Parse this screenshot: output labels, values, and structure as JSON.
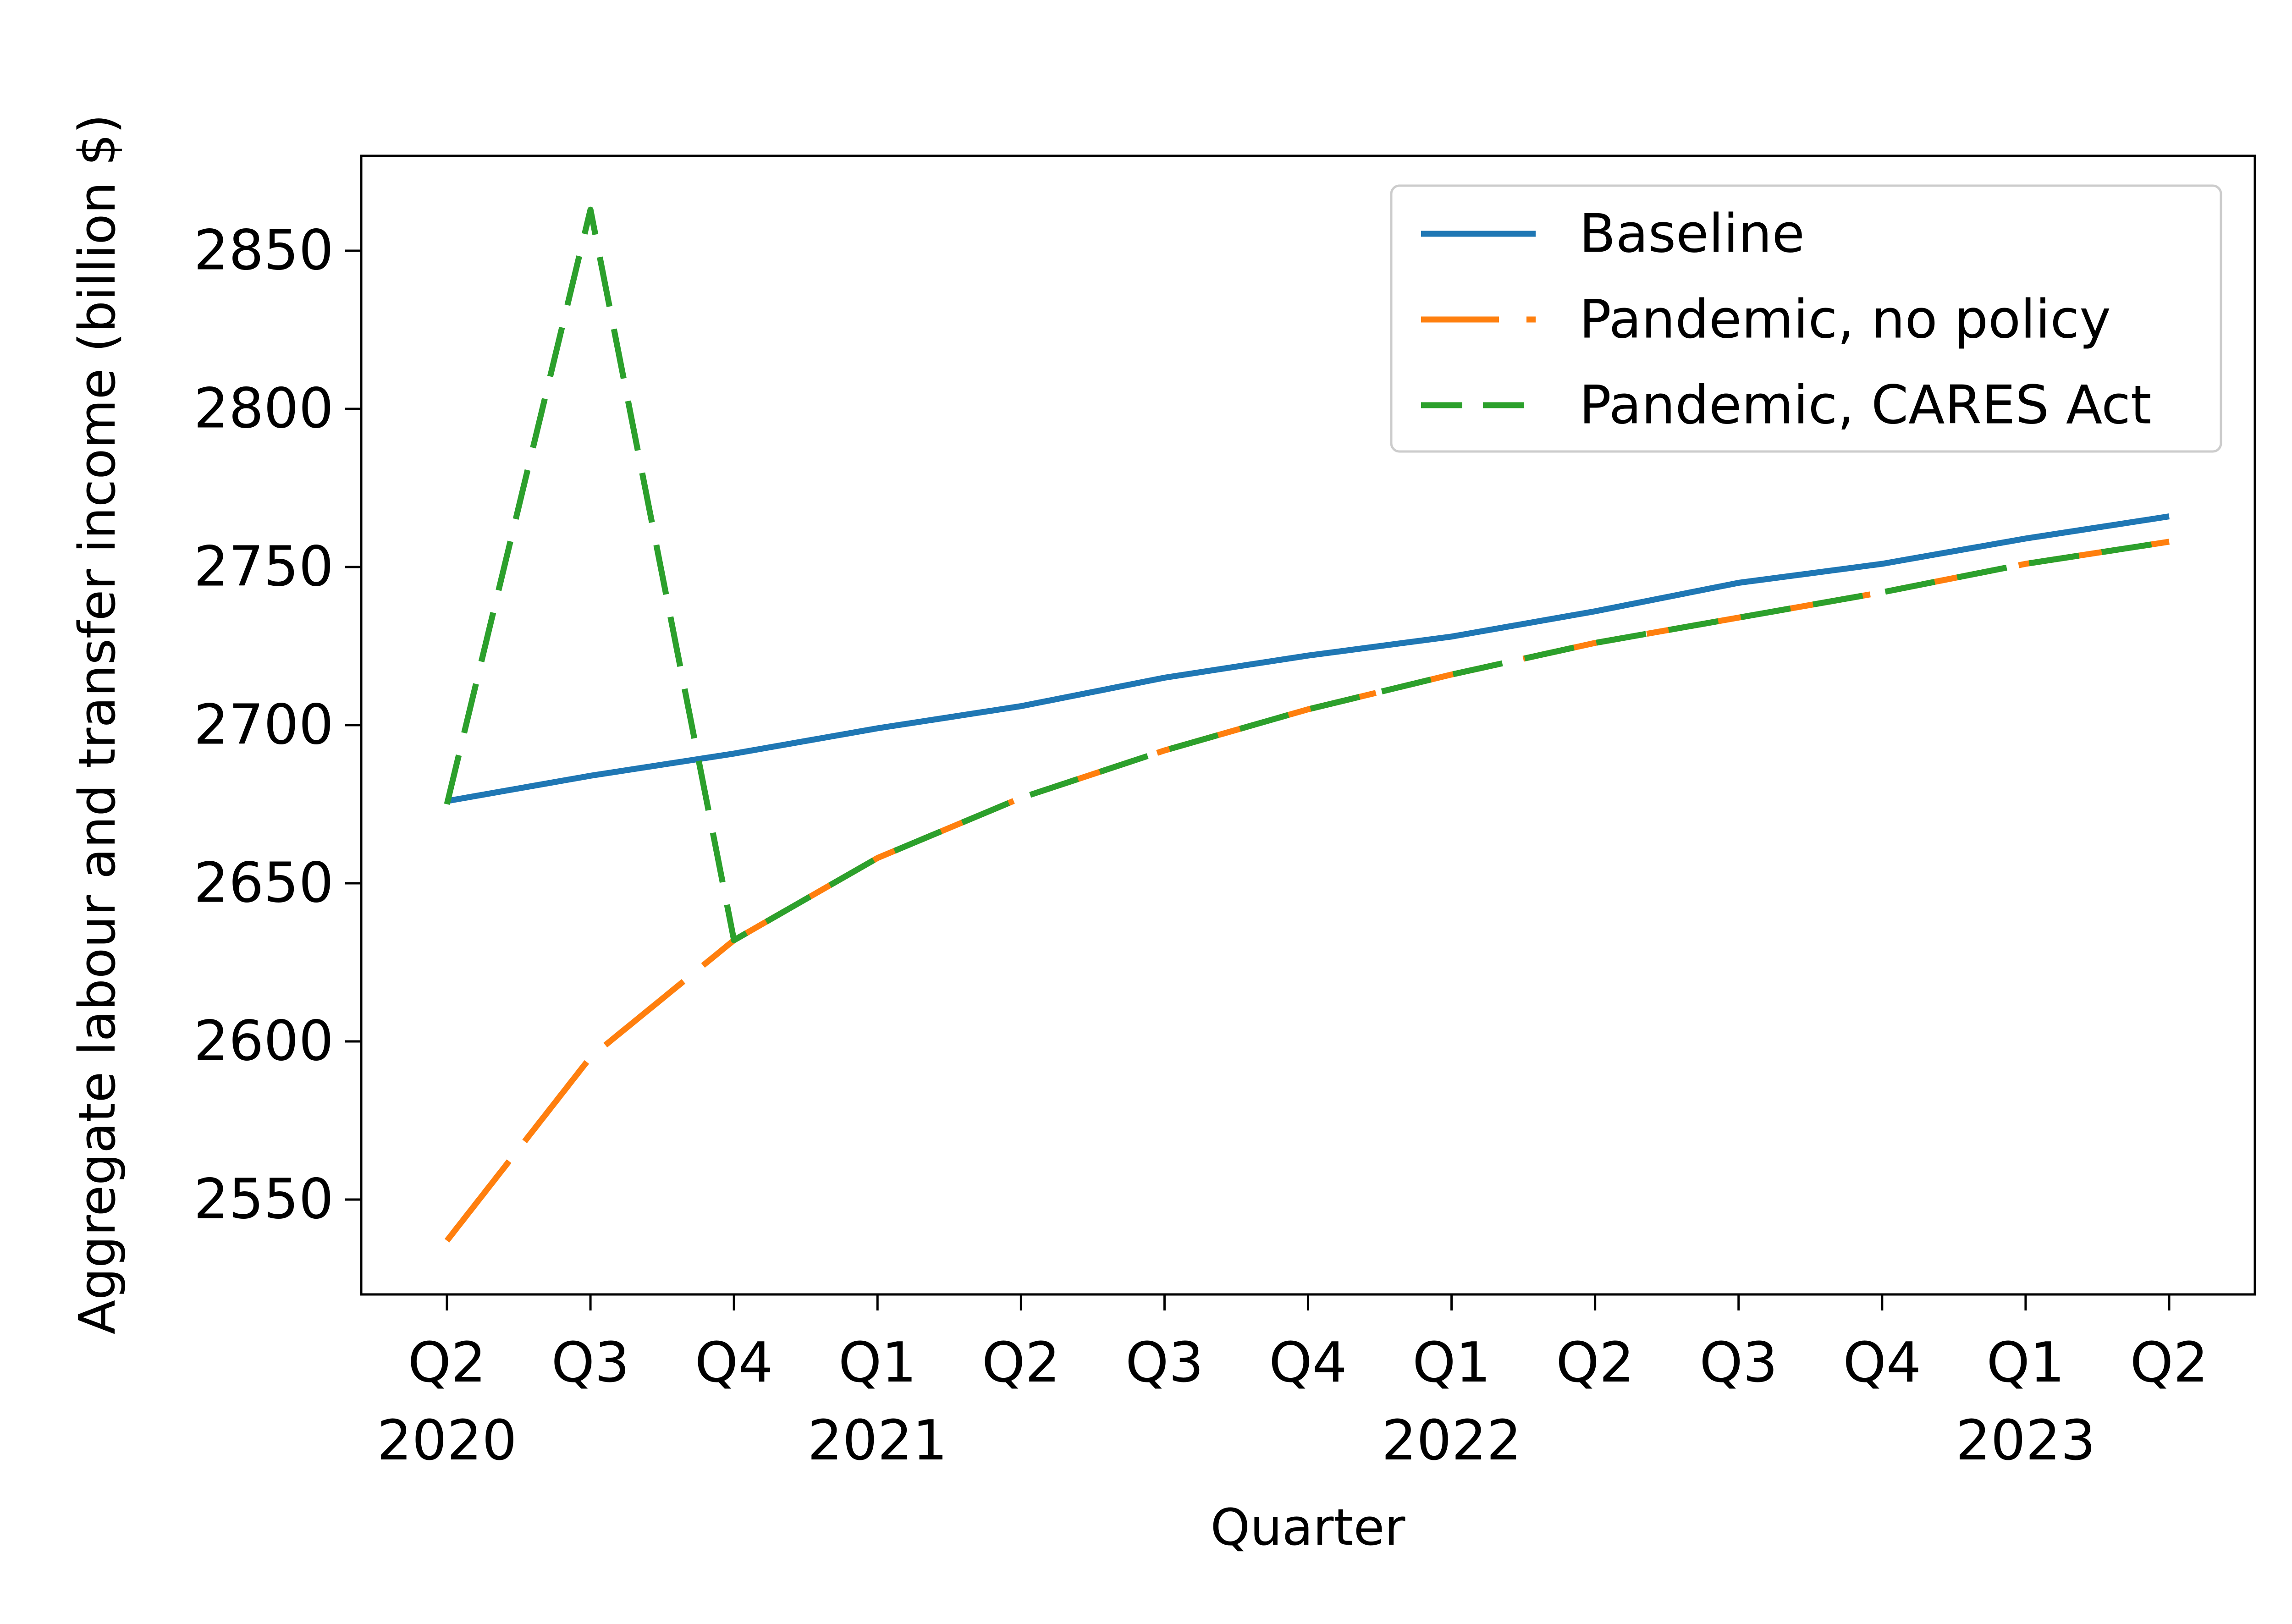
{
  "chart_data": {
    "type": "line",
    "xlabel": "Quarter",
    "ylabel": "Aggregate labour and transfer income (billion $)",
    "categories": [
      "Q2",
      "Q3",
      "Q4",
      "Q1",
      "Q2",
      "Q3",
      "Q4",
      "Q1",
      "Q2",
      "Q3",
      "Q4",
      "Q1",
      "Q2"
    ],
    "year_labels": [
      {
        "index": 0,
        "label": "2020"
      },
      {
        "index": 3,
        "label": "2021"
      },
      {
        "index": 7,
        "label": "2022"
      },
      {
        "index": 11,
        "label": "2023"
      }
    ],
    "ylim": [
      2520,
      2880
    ],
    "yticks": [
      2550,
      2600,
      2650,
      2700,
      2750,
      2800,
      2850
    ],
    "grid": false,
    "legend_position": "top-right",
    "series": [
      {
        "name": "Baseline",
        "color": "#1f77b4",
        "style": "solid",
        "values": [
          2676,
          2684,
          2691,
          2699,
          2706,
          2715,
          2722,
          2728,
          2736,
          2745,
          2751,
          2759,
          2766
        ]
      },
      {
        "name": "Pandemic, no policy",
        "color": "#ff7f0e",
        "style": "long-dash",
        "values": [
          2537,
          2595,
          2632,
          2658,
          2677,
          2692,
          2705,
          2716,
          2726,
          2734,
          2742,
          2751,
          2758
        ]
      },
      {
        "name": "Pandemic, CARES Act",
        "color": "#2ca02c",
        "style": "dash",
        "values": [
          2675,
          2863,
          2632,
          2658,
          2677,
          2692,
          2705,
          2716,
          2726,
          2734,
          2742,
          2751,
          2758
        ]
      }
    ]
  }
}
